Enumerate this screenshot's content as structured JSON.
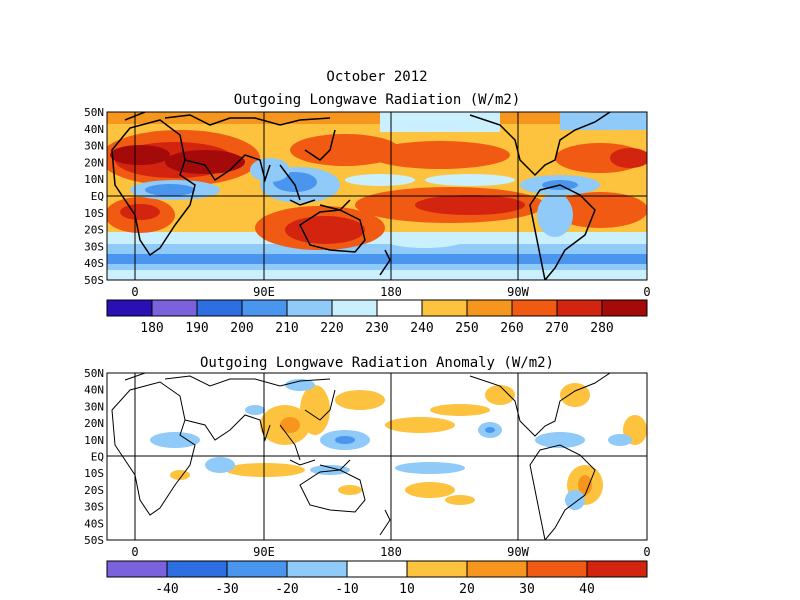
{
  "figure": {
    "title": "October 2012"
  },
  "panels": [
    {
      "id": "total",
      "title": "Outgoing Longwave Radiation (W/m2)",
      "lat_labels": [
        "50N",
        "40N",
        "30N",
        "20N",
        "10N",
        "EQ",
        "10S",
        "20S",
        "30S",
        "40S",
        "50S"
      ],
      "lon_labels": [
        "0",
        "90E",
        "180",
        "90W",
        "0"
      ],
      "colorbar": {
        "labels": [
          "180",
          "190",
          "200",
          "210",
          "220",
          "230",
          "240",
          "250",
          "260",
          "270",
          "280"
        ],
        "colors": [
          "#2a0fb4",
          "#7b62dd",
          "#2d6fe0",
          "#4a95ee",
          "#8fcaf8",
          "#c9f0fc",
          "#ffffff",
          "#fdc23e",
          "#f7961f",
          "#f05a12",
          "#d2240f",
          "#a40a0a"
        ]
      }
    },
    {
      "id": "anomaly",
      "title": "Outgoing Longwave Radiation Anomaly (W/m2)",
      "lat_labels": [
        "50N",
        "40N",
        "30N",
        "20N",
        "10N",
        "EQ",
        "10S",
        "20S",
        "30S",
        "40S",
        "50S"
      ],
      "lon_labels": [
        "0",
        "90E",
        "180",
        "90W",
        "0"
      ],
      "colorbar": {
        "labels": [
          "-40",
          "-30",
          "-20",
          "-10",
          "10",
          "20",
          "30",
          "40"
        ],
        "colors": [
          "#7b62dd",
          "#2d6fe0",
          "#4a95ee",
          "#8fcaf8",
          "#ffffff",
          "#fdc23e",
          "#f7961f",
          "#f05a12",
          "#d2240f"
        ]
      }
    }
  ]
}
